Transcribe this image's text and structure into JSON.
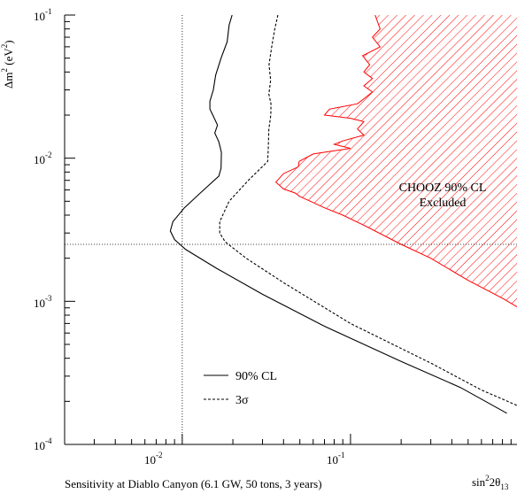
{
  "chart_data": {
    "type": "line",
    "xscale": "log",
    "yscale": "log",
    "xlim": [
      0.002,
      1.0
    ],
    "ylim": [
      0.0001,
      0.1
    ],
    "x_ticks": [
      {
        "value": 0.01,
        "base": "10",
        "exp": "-2"
      },
      {
        "value": 0.1,
        "base": "10",
        "exp": "-1"
      }
    ],
    "y_ticks": [
      {
        "value": 0.1,
        "base": "10",
        "exp": "-1"
      },
      {
        "value": 0.01,
        "base": "10",
        "exp": "-2"
      },
      {
        "value": 0.001,
        "base": "10",
        "exp": "-3"
      },
      {
        "value": 0.0001,
        "base": "10",
        "exp": "-4"
      }
    ],
    "xlabel": {
      "pre": "sin",
      "sup": "2",
      "mid": "2θ",
      "sub": "13"
    },
    "ylabel": {
      "pre": "Δm",
      "sup": "2",
      "post": " (eV",
      "sup2": "2",
      "post2": ")"
    },
    "caption": "Sensitivity at Diablo Canyon (6.1 GW, 50 tons, 3 years)",
    "reference_lines": {
      "x": 0.01,
      "y": 0.0025
    },
    "series": [
      {
        "name": "90% CL",
        "style": "solid",
        "color": "#000000",
        "points": [
          [
            0.0198,
            0.1
          ],
          [
            0.019,
            0.085
          ],
          [
            0.0185,
            0.065
          ],
          [
            0.017,
            0.05
          ],
          [
            0.0158,
            0.038
          ],
          [
            0.0153,
            0.03
          ],
          [
            0.0146,
            0.025
          ],
          [
            0.0146,
            0.022
          ],
          [
            0.0152,
            0.02
          ],
          [
            0.0162,
            0.017
          ],
          [
            0.0156,
            0.015
          ],
          [
            0.0165,
            0.013
          ],
          [
            0.0171,
            0.011
          ],
          [
            0.017,
            0.0085
          ],
          [
            0.0165,
            0.0075
          ],
          [
            0.013,
            0.0058
          ],
          [
            0.0103,
            0.0045
          ],
          [
            0.0088,
            0.0036
          ],
          [
            0.0085,
            0.0031
          ],
          [
            0.009,
            0.0027
          ],
          [
            0.0105,
            0.0023
          ],
          [
            0.016,
            0.0017
          ],
          [
            0.03,
            0.00112
          ],
          [
            0.07,
            0.00067
          ],
          [
            0.2,
            0.00038
          ],
          [
            0.45,
            0.00025
          ],
          [
            0.85,
            0.000165
          ]
        ]
      },
      {
        "name": "3σ",
        "style": "dashed",
        "color": "#000000",
        "points": [
          [
            0.037,
            0.1
          ],
          [
            0.0355,
            0.08
          ],
          [
            0.034,
            0.06
          ],
          [
            0.0328,
            0.045
          ],
          [
            0.0335,
            0.035
          ],
          [
            0.0327,
            0.028
          ],
          [
            0.0337,
            0.024
          ],
          [
            0.0336,
            0.02
          ],
          [
            0.0327,
            0.016
          ],
          [
            0.0325,
            0.012
          ],
          [
            0.0322,
            0.0095
          ],
          [
            0.025,
            0.0071
          ],
          [
            0.019,
            0.005
          ],
          [
            0.0167,
            0.0036
          ],
          [
            0.0167,
            0.003
          ],
          [
            0.018,
            0.0026
          ],
          [
            0.024,
            0.002
          ],
          [
            0.04,
            0.00135
          ],
          [
            0.1,
            0.0007
          ],
          [
            0.3,
            0.00037
          ],
          [
            0.6,
            0.00024
          ],
          [
            1.0,
            0.000185
          ]
        ]
      },
      {
        "name": "CHOOZ 90% CL Excluded",
        "style": "hatched",
        "color": "#ff0000",
        "boundary": [
          [
            0.14,
            0.1
          ],
          [
            0.15,
            0.08
          ],
          [
            0.135,
            0.07
          ],
          [
            0.15,
            0.06
          ],
          [
            0.118,
            0.052
          ],
          [
            0.13,
            0.045
          ],
          [
            0.12,
            0.04
          ],
          [
            0.135,
            0.036
          ],
          [
            0.12,
            0.032
          ],
          [
            0.135,
            0.029
          ],
          [
            0.12,
            0.026
          ],
          [
            0.11,
            0.024
          ],
          [
            0.075,
            0.022
          ],
          [
            0.07,
            0.02
          ],
          [
            0.1,
            0.019
          ],
          [
            0.12,
            0.018
          ],
          [
            0.11,
            0.016
          ],
          [
            0.12,
            0.0145
          ],
          [
            0.09,
            0.0132
          ],
          [
            0.08,
            0.0125
          ],
          [
            0.1,
            0.0117
          ],
          [
            0.06,
            0.0107
          ],
          [
            0.0495,
            0.0095
          ],
          [
            0.049,
            0.0087
          ],
          [
            0.04,
            0.0078
          ],
          [
            0.036,
            0.0068
          ],
          [
            0.04,
            0.0061
          ],
          [
            0.047,
            0.0057
          ],
          [
            0.05,
            0.0054
          ],
          [
            0.06,
            0.0049
          ],
          [
            0.07,
            0.0045
          ],
          [
            0.09,
            0.004
          ],
          [
            0.12,
            0.0034
          ],
          [
            0.2,
            0.0025
          ],
          [
            0.3,
            0.002
          ],
          [
            0.5,
            0.0014
          ],
          [
            0.8,
            0.00105
          ],
          [
            1.0,
            0.0009
          ]
        ],
        "label_lines": [
          "CHOOZ 90% CL",
          "Excluded"
        ]
      }
    ],
    "legend": {
      "placement": "lower-left",
      "entries": [
        {
          "label": "90% CL",
          "style": "solid"
        },
        {
          "label": "3",
          "glyph": "σ",
          "style": "dashed"
        }
      ]
    }
  }
}
